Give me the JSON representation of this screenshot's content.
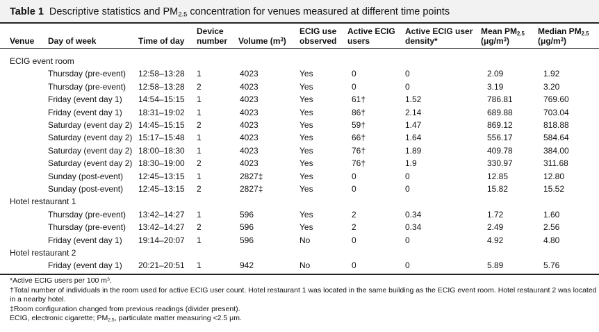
{
  "table": {
    "label": "Table 1",
    "caption_pre": "Descriptive statistics and PM",
    "caption_sub": "2.5",
    "caption_post": " concentration for venues measured at different time points"
  },
  "headers": {
    "venue": "Venue",
    "day": "Day of week",
    "time": "Time of day",
    "device_l1": "Device",
    "device_l2": "number",
    "volume_l2": "Volume (m",
    "volume_sup": "3",
    "volume_close": ")",
    "ecig_l1": "ECIG use",
    "ecig_l2": "observed",
    "users_l1": "Active ECIG",
    "users_l2": "users",
    "density_l1": "Active ECIG user",
    "density_l2": "density*",
    "mean_l1": "Mean PM",
    "mean_sub": "2.5",
    "mean_l2": "(μg/m",
    "mean_sup": "3",
    "mean_close": ")",
    "median_l1": "Median PM",
    "median_sub": "2.5",
    "median_l2": "(μg/m",
    "median_sup": "3",
    "median_close": ")"
  },
  "sections": [
    {
      "name": "ECIG event room",
      "rows": [
        {
          "day": "Thursday (pre-event)",
          "time": "12:58–13:28",
          "device": "1",
          "volume": "4023",
          "ecig": "Yes",
          "users": "0",
          "density": "0",
          "mean": "2.09",
          "median": "1.92"
        },
        {
          "day": "Thursday (pre-event)",
          "time": "12:58–13:28",
          "device": "2",
          "volume": "4023",
          "ecig": "Yes",
          "users": "0",
          "density": "0",
          "mean": "3.19",
          "median": "3.20"
        },
        {
          "day": "Friday (event day 1)",
          "time": "14:54–15:15",
          "device": "1",
          "volume": "4023",
          "ecig": "Yes",
          "users": "61†",
          "density": "1.52",
          "mean": "786.81",
          "median": "769.60"
        },
        {
          "day": "Friday (event day 1)",
          "time": "18:31–19:02",
          "device": "1",
          "volume": "4023",
          "ecig": "Yes",
          "users": "86†",
          "density": "2.14",
          "mean": "689.88",
          "median": "703.04"
        },
        {
          "day": "Saturday (event day 2)",
          "time": "14:45–15:15",
          "device": "2",
          "volume": "4023",
          "ecig": "Yes",
          "users": "59†",
          "density": "1.47",
          "mean": "869.12",
          "median": "818.88"
        },
        {
          "day": "Saturday (event day 2)",
          "time": "15:17–15:48",
          "device": "1",
          "volume": "4023",
          "ecig": "Yes",
          "users": "66†",
          "density": "1.64",
          "mean": "556.17",
          "median": "584.64"
        },
        {
          "day": "Saturday (event day 2)",
          "time": "18:00–18:30",
          "device": "1",
          "volume": "4023",
          "ecig": "Yes",
          "users": "76†",
          "density": "1.89",
          "mean": "409.78",
          "median": "384.00"
        },
        {
          "day": "Saturday (event day 2)",
          "time": "18:30–19:00",
          "device": "2",
          "volume": "4023",
          "ecig": "Yes",
          "users": "76†",
          "density": "1.9",
          "mean": "330.97",
          "median": "311.68"
        },
        {
          "day": "Sunday (post-event)",
          "time": "12:45–13:15",
          "device": "1",
          "volume": "2827‡",
          "ecig": "Yes",
          "users": "0",
          "density": "0",
          "mean": "12.85",
          "median": "12.80"
        },
        {
          "day": "Sunday (post-event)",
          "time": "12:45–13:15",
          "device": "2",
          "volume": "2827‡",
          "ecig": "Yes",
          "users": "0",
          "density": "0",
          "mean": "15.82",
          "median": "15.52"
        }
      ]
    },
    {
      "name": "Hotel restaurant 1",
      "rows": [
        {
          "day": "Thursday (pre-event)",
          "time": "13:42–14:27",
          "device": "1",
          "volume": "596",
          "ecig": "Yes",
          "users": "2",
          "density": "0.34",
          "mean": "1.72",
          "median": "1.60"
        },
        {
          "day": "Thursday (pre-event)",
          "time": "13:42–14:27",
          "device": "2",
          "volume": "596",
          "ecig": "Yes",
          "users": "2",
          "density": "0.34",
          "mean": "2.49",
          "median": "2.56"
        },
        {
          "day": "Friday (event day 1)",
          "time": "19:14–20:07",
          "device": "1",
          "volume": "596",
          "ecig": "No",
          "users": "0",
          "density": "0",
          "mean": "4.92",
          "median": "4.80"
        }
      ]
    },
    {
      "name": "Hotel restaurant 2",
      "rows": [
        {
          "day": "Friday (event day 1)",
          "time": "20:21–20:51",
          "device": "1",
          "volume": "942",
          "ecig": "No",
          "users": "0",
          "density": "0",
          "mean": "5.89",
          "median": "5.76"
        }
      ]
    }
  ],
  "footnotes": {
    "f1_pre": "*Active ECIG users per 100 m",
    "f1_sup": "3",
    "f1_post": ".",
    "f2": "†Total number of individuals in the room used for active ECIG user count. Hotel restaurant 1 was located in the same building as the ECIG event room. Hotel restaurant 2 was located",
    "f2b": "in a nearby hotel.",
    "f3": "‡Room configuration changed from previous readings (divider present).",
    "f4_pre": "ECIG, electronic cigarette; PM",
    "f4_sub": "2.5",
    "f4_post": ", particulate matter measuring <2.5 μm."
  }
}
